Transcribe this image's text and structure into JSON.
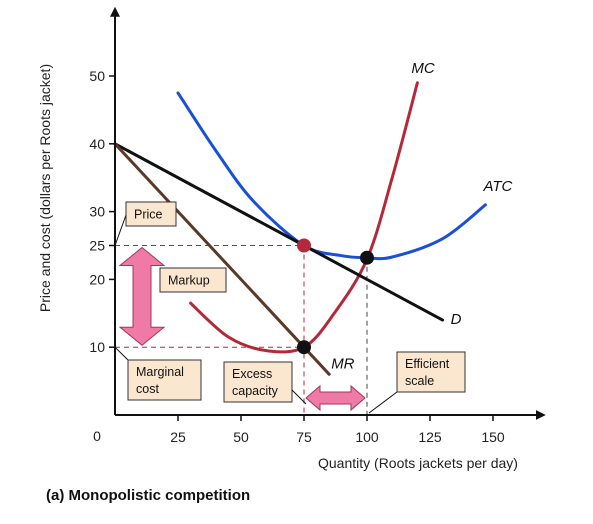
{
  "chart_data": {
    "type": "line",
    "title": "",
    "caption": "(a) Monopolistic competition",
    "xlabel": "Quantity (Roots jackets per day)",
    "ylabel": "Price and cost (dollars per Roots jacket)",
    "xlim": [
      0,
      165
    ],
    "ylim": [
      0,
      58
    ],
    "origin_label": "0",
    "x_ticks": [
      {
        "value": 25,
        "label": "25"
      },
      {
        "value": 50,
        "label": "50"
      },
      {
        "value": 75,
        "label": "75",
        "highlight": true
      },
      {
        "value": 100,
        "label": "100"
      },
      {
        "value": 125,
        "label": "125"
      },
      {
        "value": 150,
        "label": "150"
      }
    ],
    "y_ticks": [
      {
        "value": 10,
        "label": "10"
      },
      {
        "value": 20,
        "label": "20"
      },
      {
        "value": 25,
        "label": "25",
        "highlight": true
      },
      {
        "value": 30,
        "label": "30"
      },
      {
        "value": 40,
        "label": "40"
      },
      {
        "value": 50,
        "label": "50"
      }
    ],
    "series": [
      {
        "name": "MC",
        "color": "#b5283a",
        "x": [
          30,
          45,
          60,
          75,
          87,
          100,
          110,
          120
        ],
        "y": [
          16.5,
          11.5,
          9.5,
          10,
          15,
          23,
          35,
          49
        ]
      },
      {
        "name": "ATC",
        "color": "#1a4fd8",
        "x": [
          25,
          40,
          55,
          75,
          90,
          100,
          110,
          130,
          147
        ],
        "y": [
          47.5,
          39,
          31.5,
          25,
          23.5,
          23.2,
          23.3,
          26,
          31
        ]
      },
      {
        "name": "D",
        "color": "#111111",
        "x": [
          0,
          75,
          100,
          130
        ],
        "y": [
          40,
          25,
          20,
          14
        ]
      },
      {
        "name": "MR",
        "color": "#5a3a26",
        "x": [
          0,
          75,
          85
        ],
        "y": [
          40,
          10,
          6
        ]
      }
    ],
    "points": [
      {
        "x": 75,
        "y": 25,
        "color": "#b5283a"
      },
      {
        "x": 100,
        "y": 23.2,
        "color": "#111111"
      },
      {
        "x": 75,
        "y": 10,
        "color": "#111111"
      }
    ],
    "annotations": {
      "price": "Price",
      "markup": "Markup",
      "marginal_cost": [
        "Marginal",
        "cost"
      ],
      "excess_capacity": [
        "Excess",
        "capacity"
      ],
      "efficient_scale": [
        "Efficient",
        "scale"
      ]
    },
    "colors": {
      "accent_red": "#b5283a",
      "box_fill": "#fbe6cf",
      "arrow_fill": "#f07aa6"
    }
  }
}
